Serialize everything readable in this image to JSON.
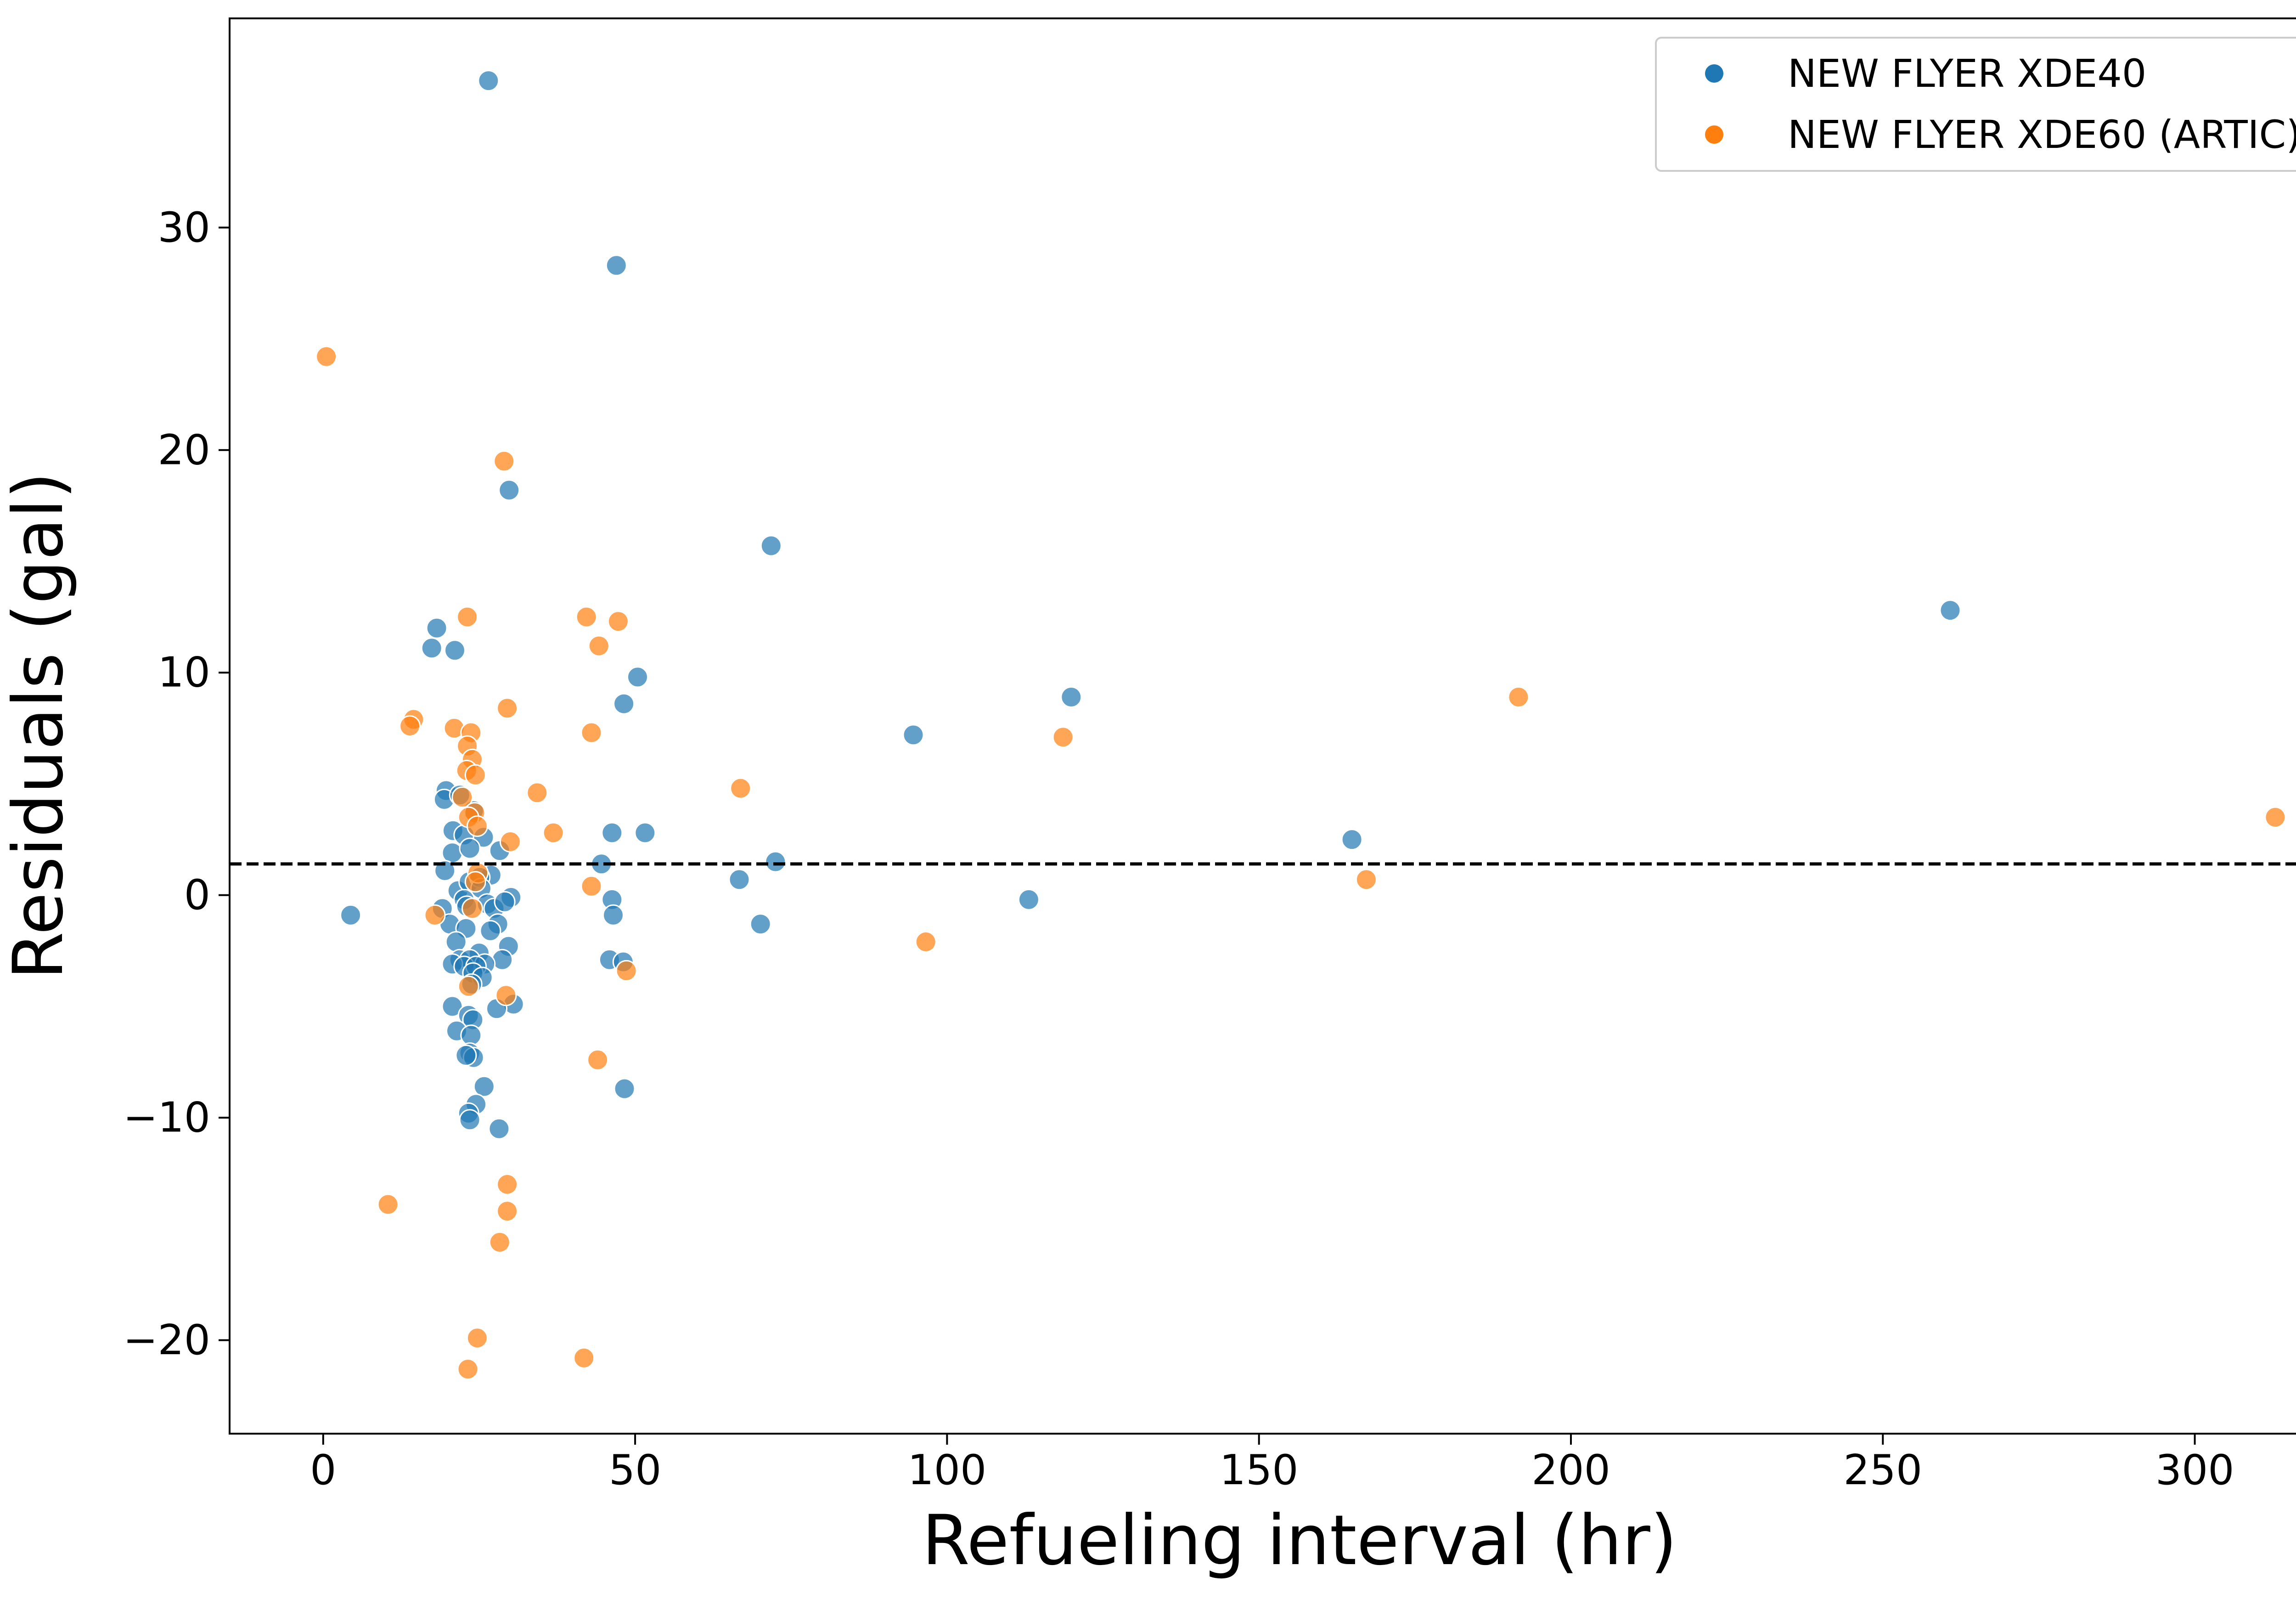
{
  "chart_data": {
    "type": "scatter",
    "title": "",
    "xlabel": "Refueling interval (hr)",
    "ylabel": "Residuals (gal)",
    "xlim": [
      -15,
      328
    ],
    "ylim": [
      -24.2,
      39.4
    ],
    "x_ticks": [
      0,
      50,
      100,
      150,
      200,
      250,
      300
    ],
    "y_ticks": [
      -20,
      -10,
      0,
      10,
      20,
      30
    ],
    "x_tick_labels": [
      "0",
      "50",
      "100",
      "150",
      "200",
      "250",
      "300"
    ],
    "y_tick_labels": [
      "−20",
      "−10",
      "0",
      "10",
      "20",
      "30"
    ],
    "grid": false,
    "legend_position": "top-right",
    "reference_line": {
      "y": 1.4,
      "style": "dashed",
      "color": "#000000"
    },
    "series": [
      {
        "name": "NEW FLYER XDE40",
        "color": "#1f77b4",
        "points": [
          [
            26.5,
            36.6
          ],
          [
            47.0,
            28.3
          ],
          [
            29.8,
            18.2
          ],
          [
            71.8,
            15.7
          ],
          [
            260.8,
            12.8
          ],
          [
            18.2,
            12.0
          ],
          [
            17.4,
            11.1
          ],
          [
            21.1,
            11.0
          ],
          [
            50.4,
            9.8
          ],
          [
            119.9,
            8.9
          ],
          [
            48.2,
            8.6
          ],
          [
            94.6,
            7.2
          ],
          [
            19.7,
            4.7
          ],
          [
            19.4,
            4.3
          ],
          [
            21.9,
            4.5
          ],
          [
            24.1,
            3.8
          ],
          [
            20.8,
            2.9
          ],
          [
            22.6,
            2.7
          ],
          [
            25.7,
            2.6
          ],
          [
            46.3,
            2.8
          ],
          [
            51.6,
            2.8
          ],
          [
            164.9,
            2.5
          ],
          [
            20.7,
            1.9
          ],
          [
            23.5,
            2.1
          ],
          [
            28.3,
            2.0
          ],
          [
            21.6,
            0.2
          ],
          [
            72.5,
            1.5
          ],
          [
            44.6,
            1.4
          ],
          [
            19.5,
            1.1
          ],
          [
            26.9,
            0.9
          ],
          [
            23.4,
            0.6
          ],
          [
            25.1,
            0.8
          ],
          [
            66.7,
            0.7
          ],
          [
            22.6,
            -0.2
          ],
          [
            25.3,
            0.3
          ],
          [
            30.1,
            -0.1
          ],
          [
            4.4,
            -0.9
          ],
          [
            19.1,
            -0.6
          ],
          [
            23.0,
            -0.5
          ],
          [
            26.3,
            -0.4
          ],
          [
            27.4,
            -0.6
          ],
          [
            29.1,
            -0.3
          ],
          [
            46.3,
            -0.2
          ],
          [
            113.1,
            -0.2
          ],
          [
            46.5,
            -0.9
          ],
          [
            20.3,
            -1.3
          ],
          [
            22.9,
            -1.5
          ],
          [
            28.0,
            -1.3
          ],
          [
            70.1,
            -1.3
          ],
          [
            26.8,
            -1.6
          ],
          [
            21.3,
            -2.1
          ],
          [
            25.0,
            -2.6
          ],
          [
            29.7,
            -2.3
          ],
          [
            21.9,
            -2.9
          ],
          [
            45.9,
            -2.9
          ],
          [
            23.5,
            -2.9
          ],
          [
            48.1,
            -3.0
          ],
          [
            28.7,
            -2.9
          ],
          [
            20.7,
            -3.1
          ],
          [
            25.9,
            -3.1
          ],
          [
            22.6,
            -3.2
          ],
          [
            24.5,
            -3.2
          ],
          [
            24.0,
            -3.5
          ],
          [
            25.5,
            -3.7
          ],
          [
            23.8,
            -4.0
          ],
          [
            20.7,
            -5.0
          ],
          [
            30.5,
            -4.9
          ],
          [
            27.8,
            -5.1
          ],
          [
            23.3,
            -5.4
          ],
          [
            24.0,
            -5.6
          ],
          [
            21.4,
            -6.1
          ],
          [
            23.7,
            -6.3
          ],
          [
            23.5,
            -7.1
          ],
          [
            24.1,
            -7.3
          ],
          [
            22.9,
            -7.2
          ],
          [
            25.8,
            -8.6
          ],
          [
            48.3,
            -8.7
          ],
          [
            24.5,
            -9.4
          ],
          [
            23.3,
            -9.8
          ],
          [
            23.5,
            -10.1
          ],
          [
            28.2,
            -10.5
          ]
        ]
      },
      {
        "name": "NEW FLYER XDE60 (ARTIC)",
        "color": "#ff7f0e",
        "points": [
          [
            0.5,
            24.2
          ],
          [
            29.0,
            19.5
          ],
          [
            23.1,
            12.5
          ],
          [
            42.2,
            12.5
          ],
          [
            47.3,
            12.3
          ],
          [
            44.2,
            11.2
          ],
          [
            191.6,
            8.9
          ],
          [
            29.5,
            8.4
          ],
          [
            14.5,
            7.9
          ],
          [
            13.9,
            7.6
          ],
          [
            21.0,
            7.5
          ],
          [
            43.0,
            7.3
          ],
          [
            118.6,
            7.1
          ],
          [
            23.7,
            7.3
          ],
          [
            23.1,
            6.7
          ],
          [
            23.9,
            6.1
          ],
          [
            23.0,
            5.6
          ],
          [
            24.4,
            5.4
          ],
          [
            66.9,
            4.8
          ],
          [
            34.3,
            4.6
          ],
          [
            22.3,
            4.4
          ],
          [
            24.3,
            3.7
          ],
          [
            23.3,
            3.5
          ],
          [
            312.9,
            3.5
          ],
          [
            24.7,
            3.1
          ],
          [
            36.9,
            2.8
          ],
          [
            30.0,
            2.4
          ],
          [
            24.8,
            1.0
          ],
          [
            24.4,
            0.6
          ],
          [
            43.0,
            0.4
          ],
          [
            167.2,
            0.7
          ],
          [
            17.9,
            -0.9
          ],
          [
            23.9,
            -0.6
          ],
          [
            96.6,
            -2.1
          ],
          [
            48.6,
            -3.4
          ],
          [
            29.3,
            -4.5
          ],
          [
            23.3,
            -4.1
          ],
          [
            44.0,
            -7.4
          ],
          [
            29.5,
            -13.0
          ],
          [
            29.5,
            -14.2
          ],
          [
            10.4,
            -13.9
          ],
          [
            28.3,
            -15.6
          ],
          [
            24.7,
            -19.9
          ],
          [
            41.8,
            -20.8
          ],
          [
            23.2,
            -21.3
          ]
        ]
      }
    ]
  }
}
